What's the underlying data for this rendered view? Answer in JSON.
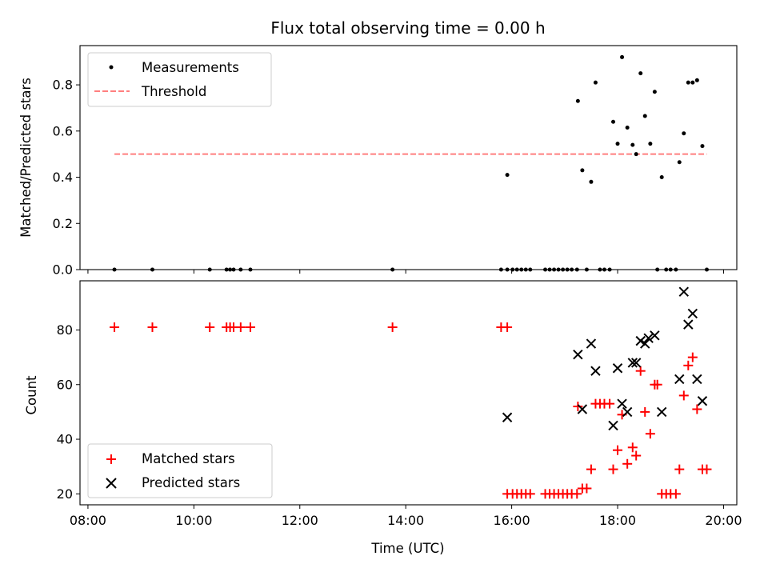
{
  "chart_data": [
    {
      "type": "scatter",
      "title": "Flux total observing time = 0.00 h",
      "xlabel": "",
      "ylabel": "Matched/Predicted stars",
      "xlim": [
        "07:51",
        "20:15"
      ],
      "ylim": [
        0,
        0.97
      ],
      "yticks": [
        0.0,
        0.2,
        0.4,
        0.6,
        0.8
      ],
      "ytick_labels": [
        "0.0",
        "0.2",
        "0.4",
        "0.6",
        "0.8"
      ],
      "grid": false,
      "legend": {
        "placement": "upper left",
        "entries": [
          "Measurements",
          "Threshold"
        ]
      },
      "series": [
        {
          "name": "Measurements",
          "marker": "point",
          "color": "#000000",
          "points": [
            [
              "08:30",
              0
            ],
            [
              "09:13",
              0
            ],
            [
              "10:18",
              0
            ],
            [
              "10:37",
              0
            ],
            [
              "10:41",
              0
            ],
            [
              "10:45",
              0
            ],
            [
              "10:53",
              0
            ],
            [
              "11:04",
              0
            ],
            [
              "13:45",
              0
            ],
            [
              "15:48",
              0
            ],
            [
              "15:55",
              0
            ],
            [
              "16:01",
              0
            ],
            [
              "16:06",
              0
            ],
            [
              "16:11",
              0
            ],
            [
              "16:16",
              0
            ],
            [
              "16:21",
              0
            ],
            [
              "16:38",
              0
            ],
            [
              "16:43",
              0
            ],
            [
              "16:48",
              0
            ],
            [
              "16:53",
              0
            ],
            [
              "16:58",
              0
            ],
            [
              "17:03",
              0
            ],
            [
              "17:08",
              0
            ],
            [
              "17:14",
              0
            ],
            [
              "17:25",
              0
            ],
            [
              "17:40",
              0
            ],
            [
              "17:45",
              0
            ],
            [
              "17:51",
              0
            ],
            [
              "18:45",
              0
            ],
            [
              "18:55",
              0
            ],
            [
              "19:00",
              0
            ],
            [
              "19:06",
              0
            ],
            [
              "19:41",
              0
            ],
            [
              "15:55",
              0.41
            ],
            [
              "17:15",
              0.73
            ],
            [
              "17:20",
              0.43
            ],
            [
              "17:30",
              0.38
            ],
            [
              "17:35",
              0.81
            ],
            [
              "17:55",
              0.64
            ],
            [
              "18:00",
              0.545
            ],
            [
              "18:05",
              0.92
            ],
            [
              "18:11",
              0.615
            ],
            [
              "18:17",
              0.54
            ],
            [
              "18:21",
              0.5
            ],
            [
              "18:26",
              0.85
            ],
            [
              "18:31",
              0.665
            ],
            [
              "18:37",
              0.545
            ],
            [
              "18:42",
              0.77
            ],
            [
              "18:50",
              0.4
            ],
            [
              "19:10",
              0.465
            ],
            [
              "19:15",
              0.59
            ],
            [
              "19:20",
              0.81
            ],
            [
              "19:25",
              0.81
            ],
            [
              "19:30",
              0.82
            ],
            [
              "19:36",
              0.535
            ]
          ]
        },
        {
          "name": "Threshold",
          "marker": "dashed-line",
          "color": "#ff7f7f",
          "points": [
            [
              "08:30",
              0.5
            ],
            [
              "19:41",
              0.5
            ]
          ]
        }
      ]
    },
    {
      "type": "scatter",
      "title": "",
      "xlabel": "Time (UTC)",
      "ylabel": "Count",
      "xlim": [
        "07:51",
        "20:15"
      ],
      "ylim": [
        16,
        98
      ],
      "xticks": [
        "08:00",
        "10:00",
        "12:00",
        "14:00",
        "16:00",
        "18:00",
        "20:00"
      ],
      "xtick_labels": [
        "08:00",
        "10:00",
        "12:00",
        "14:00",
        "16:00",
        "18:00",
        "20:00"
      ],
      "yticks": [
        20,
        40,
        60,
        80
      ],
      "ytick_labels": [
        "20",
        "40",
        "60",
        "80"
      ],
      "grid": false,
      "legend": {
        "placement": "lower left",
        "entries": [
          "Matched stars",
          "Predicted stars"
        ]
      },
      "series": [
        {
          "name": "Matched stars",
          "marker": "plus",
          "color": "#ff0000",
          "points": [
            [
              "08:30",
              81
            ],
            [
              "09:13",
              81
            ],
            [
              "10:18",
              81
            ],
            [
              "10:37",
              81
            ],
            [
              "10:41",
              81
            ],
            [
              "10:45",
              81
            ],
            [
              "10:53",
              81
            ],
            [
              "11:04",
              81
            ],
            [
              "13:45",
              81
            ],
            [
              "15:48",
              81
            ],
            [
              "15:55",
              81
            ],
            [
              "15:55",
              20
            ],
            [
              "16:01",
              20
            ],
            [
              "16:06",
              20
            ],
            [
              "16:11",
              20
            ],
            [
              "16:16",
              20
            ],
            [
              "16:21",
              20
            ],
            [
              "16:38",
              20
            ],
            [
              "16:43",
              20
            ],
            [
              "16:48",
              20
            ],
            [
              "16:53",
              20
            ],
            [
              "16:58",
              20
            ],
            [
              "17:03",
              20
            ],
            [
              "17:08",
              20
            ],
            [
              "17:14",
              20
            ],
            [
              "17:15",
              52
            ],
            [
              "17:20",
              22
            ],
            [
              "17:25",
              22
            ],
            [
              "17:30",
              29
            ],
            [
              "17:35",
              53
            ],
            [
              "17:40",
              53
            ],
            [
              "17:45",
              53
            ],
            [
              "17:51",
              53
            ],
            [
              "17:55",
              29
            ],
            [
              "18:00",
              36
            ],
            [
              "18:05",
              49
            ],
            [
              "18:11",
              31
            ],
            [
              "18:17",
              37
            ],
            [
              "18:21",
              34
            ],
            [
              "18:26",
              65
            ],
            [
              "18:31",
              50
            ],
            [
              "18:37",
              42
            ],
            [
              "18:42",
              60
            ],
            [
              "18:45",
              60
            ],
            [
              "18:50",
              20
            ],
            [
              "18:55",
              20
            ],
            [
              "19:00",
              20
            ],
            [
              "19:06",
              20
            ],
            [
              "19:10",
              29
            ],
            [
              "19:15",
              56
            ],
            [
              "19:20",
              67
            ],
            [
              "19:25",
              70
            ],
            [
              "19:30",
              51
            ],
            [
              "19:36",
              29
            ],
            [
              "19:41",
              29
            ]
          ]
        },
        {
          "name": "Predicted stars",
          "marker": "x",
          "color": "#000000",
          "points": [
            [
              "15:55",
              48
            ],
            [
              "17:15",
              71
            ],
            [
              "17:20",
              51
            ],
            [
              "17:30",
              75
            ],
            [
              "17:35",
              65
            ],
            [
              "17:55",
              45
            ],
            [
              "18:00",
              66
            ],
            [
              "18:05",
              53
            ],
            [
              "18:11",
              50
            ],
            [
              "18:17",
              68
            ],
            [
              "18:21",
              68
            ],
            [
              "18:26",
              76
            ],
            [
              "18:31",
              75
            ],
            [
              "18:35",
              77
            ],
            [
              "18:42",
              78
            ],
            [
              "18:50",
              50
            ],
            [
              "19:10",
              62
            ],
            [
              "19:15",
              94
            ],
            [
              "19:20",
              82
            ],
            [
              "19:25",
              86
            ],
            [
              "19:30",
              62
            ],
            [
              "19:36",
              54
            ]
          ]
        }
      ]
    }
  ]
}
